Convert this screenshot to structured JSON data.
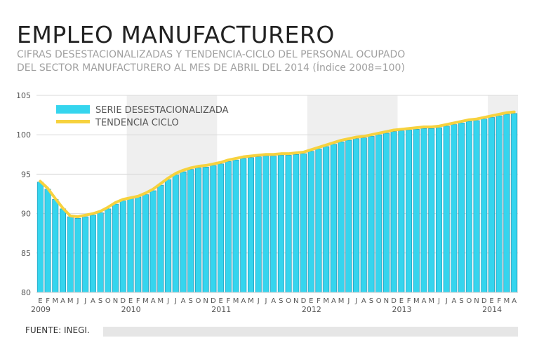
{
  "title": "EMPLEO MANUFACTURERO",
  "subtitle_lines": [
    "CIFRAS DESESTACIONALIZADAS Y TENDENCIA-CICLO DEL PERSONAL OCUPADO",
    "DEL SECTOR MANUFACTURERO AL MES DE ABRIL DEL 2014 (Índice 2008=100)"
  ],
  "source": "FUENTE: INEGI.",
  "colors": {
    "bar": "#35d5ee",
    "bar_stroke": "#1a8fb0",
    "trend": "#f7d23e",
    "band": "#efefef",
    "grid": "#d8d8d8"
  },
  "chart_data": {
    "type": "bar",
    "title": "EMPLEO MANUFACTURERO",
    "ylim": [
      80,
      105
    ],
    "yticks": [
      80,
      85,
      90,
      95,
      100,
      105
    ],
    "month_labels": [
      "E",
      "F",
      "M",
      "A",
      "M",
      "J",
      "J",
      "A",
      "S",
      "O",
      "N",
      "D"
    ],
    "years": [
      "2009",
      "2010",
      "2011",
      "2012",
      "2013",
      "2014"
    ],
    "x_start": "2009-01",
    "x_end": "2014-04",
    "legend": [
      "SERIE DESESTACIONALIZADA",
      "TENDENCIA CICLO"
    ],
    "legend_position": "top-left",
    "series": [
      {
        "name": "SERIE DESESTACIONALIZADA",
        "kind": "bar",
        "values": [
          94.0,
          93.1,
          91.8,
          90.6,
          89.6,
          89.4,
          89.6,
          89.8,
          90.1,
          90.6,
          91.2,
          91.6,
          91.9,
          92.1,
          92.4,
          92.9,
          93.6,
          94.3,
          94.9,
          95.3,
          95.6,
          95.8,
          95.9,
          96.1,
          96.3,
          96.6,
          96.8,
          97.0,
          97.1,
          97.2,
          97.3,
          97.3,
          97.4,
          97.4,
          97.5,
          97.6,
          97.9,
          98.2,
          98.5,
          98.8,
          99.1,
          99.3,
          99.5,
          99.6,
          99.8,
          100.0,
          100.2,
          100.4,
          100.5,
          100.6,
          100.7,
          100.8,
          100.8,
          100.9,
          101.1,
          101.3,
          101.5,
          101.7,
          101.8,
          102.0,
          102.2,
          102.4,
          102.6,
          102.7
        ]
      },
      {
        "name": "TENDENCIA CICLO",
        "kind": "line",
        "values": [
          94.1,
          93.2,
          91.9,
          90.7,
          89.7,
          89.6,
          89.8,
          90.0,
          90.3,
          90.8,
          91.4,
          91.8,
          92.0,
          92.2,
          92.6,
          93.1,
          93.8,
          94.5,
          95.1,
          95.5,
          95.8,
          96.0,
          96.1,
          96.3,
          96.5,
          96.8,
          97.0,
          97.2,
          97.3,
          97.4,
          97.5,
          97.5,
          97.6,
          97.6,
          97.7,
          97.8,
          98.1,
          98.4,
          98.7,
          99.0,
          99.3,
          99.5,
          99.7,
          99.8,
          100.0,
          100.2,
          100.4,
          100.6,
          100.7,
          100.8,
          100.9,
          101.0,
          101.0,
          101.1,
          101.3,
          101.5,
          101.7,
          101.9,
          102.0,
          102.2,
          102.4,
          102.6,
          102.8,
          102.9
        ]
      }
    ],
    "grid": true
  }
}
